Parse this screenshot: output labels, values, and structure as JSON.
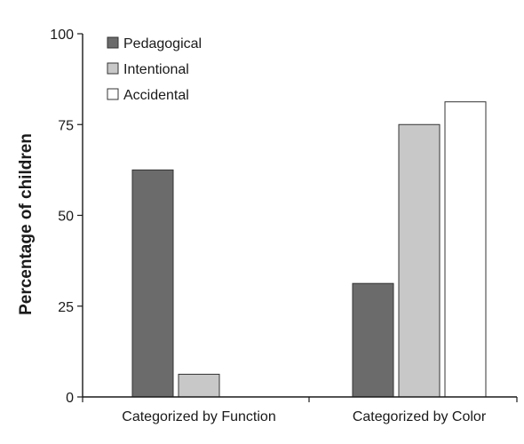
{
  "chart_data": {
    "type": "bar",
    "title": "",
    "xlabel": "",
    "ylabel": "Percentage of children",
    "ylim": [
      0,
      100
    ],
    "yticks": [
      0,
      25,
      50,
      75,
      100
    ],
    "grid": false,
    "legend_position": "top-left",
    "categories": [
      "Categorized by Function",
      "Categorized by Color"
    ],
    "series": [
      {
        "name": "Pedagogical",
        "color": "#6b6b6b",
        "values": [
          62.5,
          31.25
        ]
      },
      {
        "name": "Intentional",
        "color": "#c8c8c8",
        "values": [
          6.25,
          75
        ]
      },
      {
        "name": "Accidental",
        "color": "#ffffff",
        "values": [
          0,
          81.25
        ]
      }
    ]
  }
}
